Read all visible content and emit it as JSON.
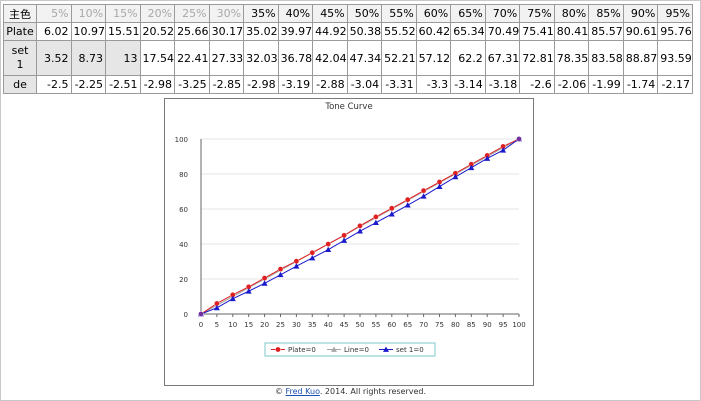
{
  "table": {
    "rows": [
      {
        "label": "主色",
        "values": [
          "5%",
          "10%",
          "15%",
          "20%",
          "25%",
          "30%",
          "35%",
          "40%",
          "45%",
          "50%",
          "55%",
          "60%",
          "65%",
          "70%",
          "75%",
          "80%",
          "85%",
          "90%",
          "95%"
        ]
      },
      {
        "label": "Plate",
        "values": [
          "6.02",
          "10.97",
          "15.51",
          "20.52",
          "25.66",
          "30.17",
          "35.02",
          "39.97",
          "44.92",
          "50.38",
          "55.52",
          "60.42",
          "65.34",
          "70.49",
          "75.41",
          "80.41",
          "85.57",
          "90.61",
          "95.76"
        ]
      },
      {
        "label": "set\n1",
        "values": [
          "3.52",
          "8.73",
          "13",
          "17.54",
          "22.41",
          "27.33",
          "32.03",
          "36.78",
          "42.04",
          "47.34",
          "52.21",
          "57.12",
          "62.2",
          "67.31",
          "72.81",
          "78.35",
          "83.58",
          "88.87",
          "93.59"
        ]
      },
      {
        "label": "de",
        "values": [
          "-2.5",
          "-2.25",
          "-2.51",
          "-2.98",
          "-3.25",
          "-2.85",
          "-2.98",
          "-3.19",
          "-2.88",
          "-3.04",
          "-3.31",
          "-3.3",
          "-3.14",
          "-3.18",
          "-2.6",
          "-2.06",
          "-1.99",
          "-1.74",
          "-2.17"
        ]
      }
    ],
    "dimmed_header_count": 6
  },
  "chart_data": {
    "type": "line",
    "title": "Tone Curve",
    "x": [
      0,
      5,
      10,
      15,
      20,
      25,
      30,
      35,
      40,
      45,
      50,
      55,
      60,
      65,
      70,
      75,
      80,
      85,
      90,
      95,
      100
    ],
    "xticks": [
      "0",
      "5",
      "10",
      "15",
      "20",
      "25",
      "30",
      "35",
      "40",
      "45",
      "50",
      "55",
      "60",
      "65",
      "70",
      "75",
      "80",
      "85",
      "90",
      "95",
      "100"
    ],
    "yticks": [
      "0",
      "20",
      "40",
      "60",
      "80",
      "100"
    ],
    "xlim": [
      0,
      100
    ],
    "ylim": [
      0,
      100
    ],
    "grid": "horizontal",
    "legend_position": "bottom",
    "series": [
      {
        "name": "Plate=0",
        "color": "#e02020",
        "marker": "circle",
        "values": [
          0,
          6.02,
          10.97,
          15.51,
          20.52,
          25.66,
          30.17,
          35.02,
          39.97,
          44.92,
          50.38,
          55.52,
          60.42,
          65.34,
          70.49,
          75.41,
          80.41,
          85.57,
          90.61,
          95.76,
          100
        ]
      },
      {
        "name": "Line=0",
        "color": "#a8a8a8",
        "marker": "triangle",
        "values": [
          0,
          5,
          10,
          15,
          20,
          25,
          30,
          35,
          40,
          45,
          50,
          55,
          60,
          65,
          70,
          75,
          80,
          85,
          90,
          95,
          100
        ]
      },
      {
        "name": "set 1=0",
        "color": "#1a1acc",
        "marker": "triangle",
        "values": [
          0,
          3.52,
          8.73,
          13,
          17.54,
          22.41,
          27.33,
          32.03,
          36.78,
          42.04,
          47.34,
          52.21,
          57.12,
          62.2,
          67.31,
          72.81,
          78.35,
          83.58,
          88.87,
          93.59,
          100
        ]
      }
    ]
  },
  "footer": {
    "copyright": "©",
    "author": "Fred Kuo",
    "rest": ". 2014. All rights reserved."
  }
}
